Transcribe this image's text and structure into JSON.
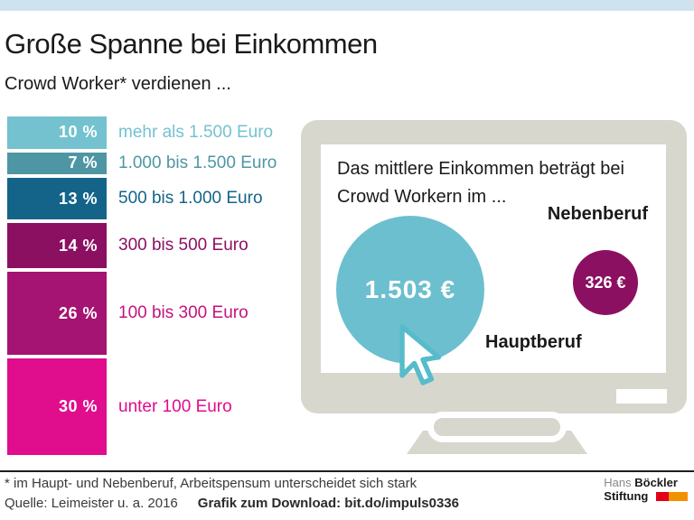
{
  "header": {
    "title": "Große Spanne bei Einkommen",
    "subtitle": "Crowd Worker* verdienen ..."
  },
  "chart_data": [
    {
      "type": "bar",
      "title": "Crowd Worker* verdienen ...",
      "unit": "percent",
      "categories": [
        "mehr als 1.500 Euro",
        "1.000 bis 1.500 Euro",
        "500 bis 1.000 Euro",
        "300 bis 500 Euro",
        "100 bis 300 Euro",
        "unter 100 Euro"
      ],
      "values": [
        10,
        7,
        13,
        14,
        26,
        30
      ],
      "value_labels": [
        "10 %",
        "7 %",
        "13 %",
        "14 %",
        "26 %",
        "30 %"
      ],
      "bar_colors": [
        "#74c2d0",
        "#4e96a4",
        "#14648a",
        "#8c1062",
        "#a51472",
        "#e00d8d"
      ],
      "label_colors": [
        "#74c2d0",
        "#4e96a4",
        "#14648a",
        "#8c1062",
        "#c4137d",
        "#e00d8d"
      ]
    },
    {
      "type": "bubble",
      "title": "Das mittlere Einkommen beträgt bei Crowd Workern im ...",
      "categories": [
        "Hauptberuf",
        "Nebenberuf"
      ],
      "values": [
        1503,
        326
      ],
      "value_labels": [
        "1.503 €",
        "326 €"
      ],
      "colors": [
        "#6cbfce",
        "#8c1061"
      ]
    }
  ],
  "monitor": {
    "text_line1": "Das mittlere Einkommen beträgt bei",
    "text_line2": "Crowd Workern im ...",
    "hauptberuf": {
      "label": "Hauptberuf",
      "value": "1.503 €",
      "color": "#6cbfce"
    },
    "nebenberuf": {
      "label": "Nebenberuf",
      "value": "326 €",
      "color": "#8c1061"
    }
  },
  "footer": {
    "footnote": "* im Haupt- und Nebenberuf, Arbeitspensum unterscheidet sich stark",
    "source": "Quelle: Leimeister u. a. 2016",
    "download": "Grafik zum Download: bit.do/impuls0336"
  },
  "logo": {
    "name_regular": "Hans ",
    "name_bold": "Böckler",
    "line2": "Stiftung "
  },
  "theme": {
    "accent_strip": "#cee3ef",
    "monitor_frame": "#d7d7ce",
    "text": "#1a1a1a",
    "logo_red": "#e2001a",
    "logo_orange": "#f29100"
  }
}
